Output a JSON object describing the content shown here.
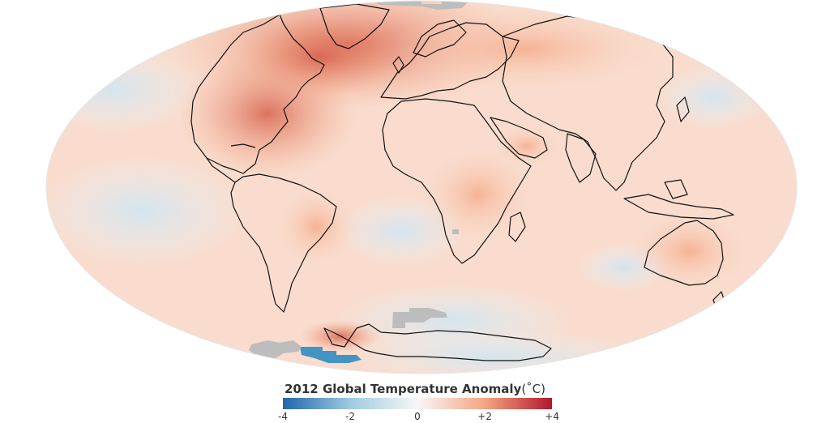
{
  "legend": {
    "title": "2012 Global Temperature Anomaly",
    "unit": "(˚C)",
    "ticks": [
      "-4",
      "-2",
      "0",
      "+2",
      "+4"
    ],
    "colors": {
      "min": "#2166ac",
      "low": "#9ecae1",
      "zero": "#f7f7f7",
      "high": "#f4a582",
      "max": "#b2182b"
    },
    "range": [
      -4,
      4
    ]
  },
  "map": {
    "projection": "mollweide",
    "no_data_color": "#bdbdbd"
  }
}
